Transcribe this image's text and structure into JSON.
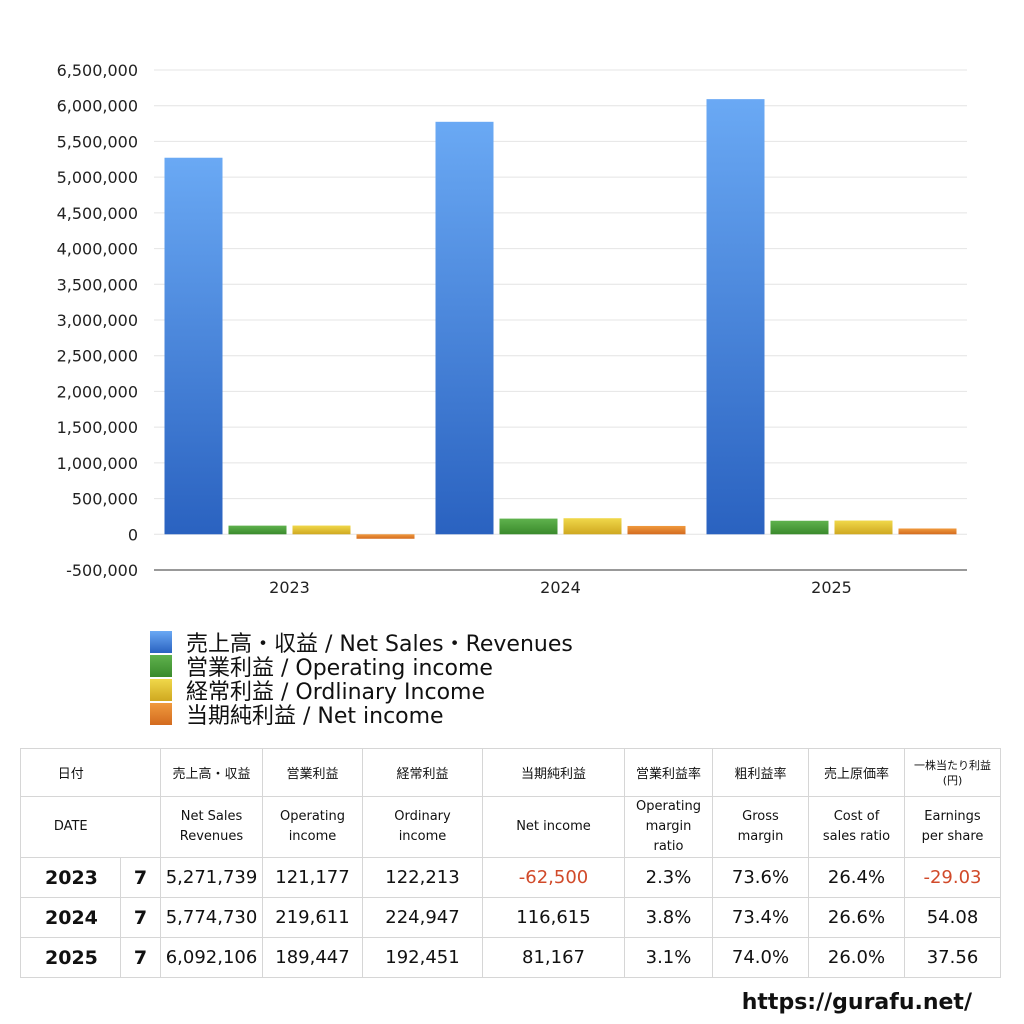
{
  "chart_data": {
    "type": "bar",
    "categories": [
      "2023",
      "2024",
      "2025"
    ],
    "series": [
      {
        "name": "売上高・収益 / Net Sales・Revenues",
        "values": [
          5271739,
          5774730,
          6092106
        ],
        "color_top": "#6aa9f4",
        "color_bottom": "#2a62c0"
      },
      {
        "name": "営業利益 / Operating income",
        "values": [
          121177,
          219611,
          189447
        ],
        "color_top": "#5fb24d",
        "color_bottom": "#3a8a2c"
      },
      {
        "name": "経常利益 / Ordlinary Income",
        "values": [
          122213,
          224947,
          192451
        ],
        "color_top": "#f0d84a",
        "color_bottom": "#cfa820"
      },
      {
        "name": "当期純利益 / Net income",
        "values": [
          -62500,
          116615,
          81167
        ],
        "color_top": "#f09a3e",
        "color_bottom": "#d36b1f"
      }
    ],
    "yticks": [
      "6,500,000",
      "6,000,000",
      "5,500,000",
      "5,000,000",
      "4,500,000",
      "4,000,000",
      "3,500,000",
      "3,000,000",
      "2,500,000",
      "2,000,000",
      "1,500,000",
      "1,000,000",
      "500,000",
      "0",
      "-500,000"
    ],
    "ylim": [
      -500000,
      6500000
    ],
    "grid": true,
    "legend_position": "bottom-left"
  },
  "table": {
    "headers_jp": [
      "日付",
      "売上高・収益",
      "営業利益",
      "経常利益",
      "当期純利益",
      "営業利益率",
      "粗利益率",
      "売上原価率",
      "一株当たり利益\n(円)"
    ],
    "headers_en": [
      "DATE",
      "Net Sales\nRevenues",
      "Operating\nincome",
      "Ordinary\nincome",
      "Net income",
      "Operating\nmargin\nratio",
      "Gross\nmargin",
      "Cost of\nsales ratio",
      "Earnings\nper share"
    ],
    "rows": [
      {
        "year": "2023",
        "month": "7",
        "sales": "5,271,739",
        "op": "121,177",
        "ord": "122,213",
        "net": "-62,500",
        "opm": "2.3%",
        "gross": "73.6%",
        "cost": "26.4%",
        "eps": "-29.03"
      },
      {
        "year": "2024",
        "month": "7",
        "sales": "5,774,730",
        "op": "219,611",
        "ord": "224,947",
        "net": "116,615",
        "opm": "3.8%",
        "gross": "73.4%",
        "cost": "26.6%",
        "eps": "54.08"
      },
      {
        "year": "2025",
        "month": "7",
        "sales": "6,092,106",
        "op": "189,447",
        "ord": "192,451",
        "net": "81,167",
        "opm": "3.1%",
        "gross": "74.0%",
        "cost": "26.0%",
        "eps": "37.56"
      }
    ]
  },
  "site_url": "https://gurafu.net/"
}
